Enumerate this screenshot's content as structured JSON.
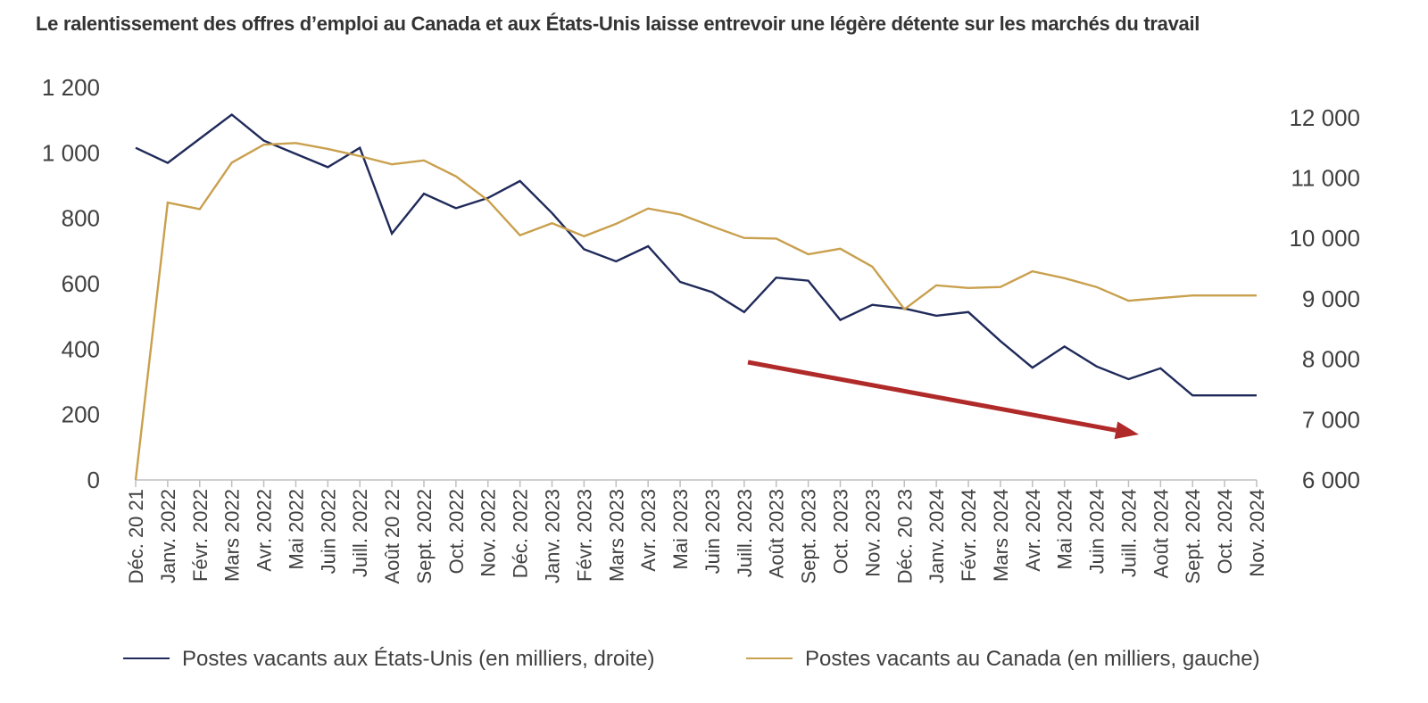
{
  "title": "Le ralentissement des offres d’emploi au Canada et aux États-Unis laisse entrevoir une légère détente sur les marchés du travail",
  "colors": {
    "us": "#1f2a5a",
    "canada": "#c9a04e",
    "arrow": "#b02a2a",
    "axis": "#bfbfbf"
  },
  "chart_data": {
    "type": "line",
    "title": "Le ralentissement des offres d’emploi au Canada et aux États-Unis laisse entrevoir une légère détente sur les marchés du travail",
    "categories": [
      "Déc. 20 21",
      "Janv. 2022",
      "Févr. 2022",
      "Mars 2022",
      "Avr. 2022",
      "Mai 2022",
      "Juin 2022",
      "Juill. 2022",
      "Août 20 22",
      "Sept. 2022",
      "Oct. 2022",
      "Nov. 2022",
      "Déc. 2022",
      "Janv. 2023",
      "Févr. 2023",
      "Mars 2023",
      "Avr. 2023",
      "Mai 2023",
      "Juin 2023",
      "Juill. 2023",
      "Août 2023",
      "Sept. 2023",
      "Oct. 2023",
      "Nov. 2023",
      "Déc. 20 23",
      "Janv. 2024",
      "Févr. 2024",
      "Mars 2024",
      "Avr. 2024",
      "Mai 2024",
      "Juin 2024",
      "Juill. 2024",
      "Août 2024",
      "Sept. 2024",
      "Oct. 2024",
      "Nov. 2024"
    ],
    "left_axis": {
      "ylim": [
        0,
        1200
      ],
      "ticks": [
        0,
        200,
        400,
        600,
        800,
        1000,
        1200
      ],
      "tick_labels": [
        "0",
        "200",
        "400",
        "600",
        "800",
        "1 000",
        "1 200"
      ]
    },
    "right_axis": {
      "ylim": [
        6000,
        12500
      ],
      "ticks": [
        6000,
        7000,
        8000,
        9000,
        10000,
        11000,
        12000
      ],
      "tick_labels": [
        "6 000",
        "7 000",
        "8 000",
        "9 000",
        "10 000",
        "11 000",
        "12 000"
      ]
    },
    "series": [
      {
        "name": "Postes vacants aux États-Unis (en milliers, droite)",
        "axis": "right",
        "values": [
          11500,
          11250,
          11650,
          12050,
          11620,
          11400,
          11180,
          11500,
          10080,
          10740,
          10500,
          10670,
          10950,
          10420,
          9820,
          9620,
          9870,
          9280,
          9110,
          8780,
          9350,
          9300,
          8650,
          8900,
          8840,
          8720,
          8780,
          8300,
          7860,
          8210,
          7880,
          7670,
          7850,
          7400,
          7400,
          7400
        ]
      },
      {
        "name": "Postes vacants au Canada (en milliers, gauche)",
        "axis": "left",
        "values": [
          0,
          848,
          828,
          970,
          1025,
          1030,
          1012,
          990,
          965,
          977,
          928,
          855,
          748,
          785,
          745,
          783,
          830,
          812,
          775,
          740,
          738,
          690,
          707,
          652,
          522,
          595,
          587,
          590,
          638,
          617,
          590,
          548,
          556,
          564,
          564,
          564
        ]
      }
    ],
    "legend": "bottom",
    "grid": false,
    "annotation": "downward red arrow from Juill. 2023 to Juill. 2024"
  },
  "legend": {
    "us": "Postes vacants aux États-Unis (en milliers, droite)",
    "canada": "Postes vacants au Canada (en milliers, gauche)"
  }
}
